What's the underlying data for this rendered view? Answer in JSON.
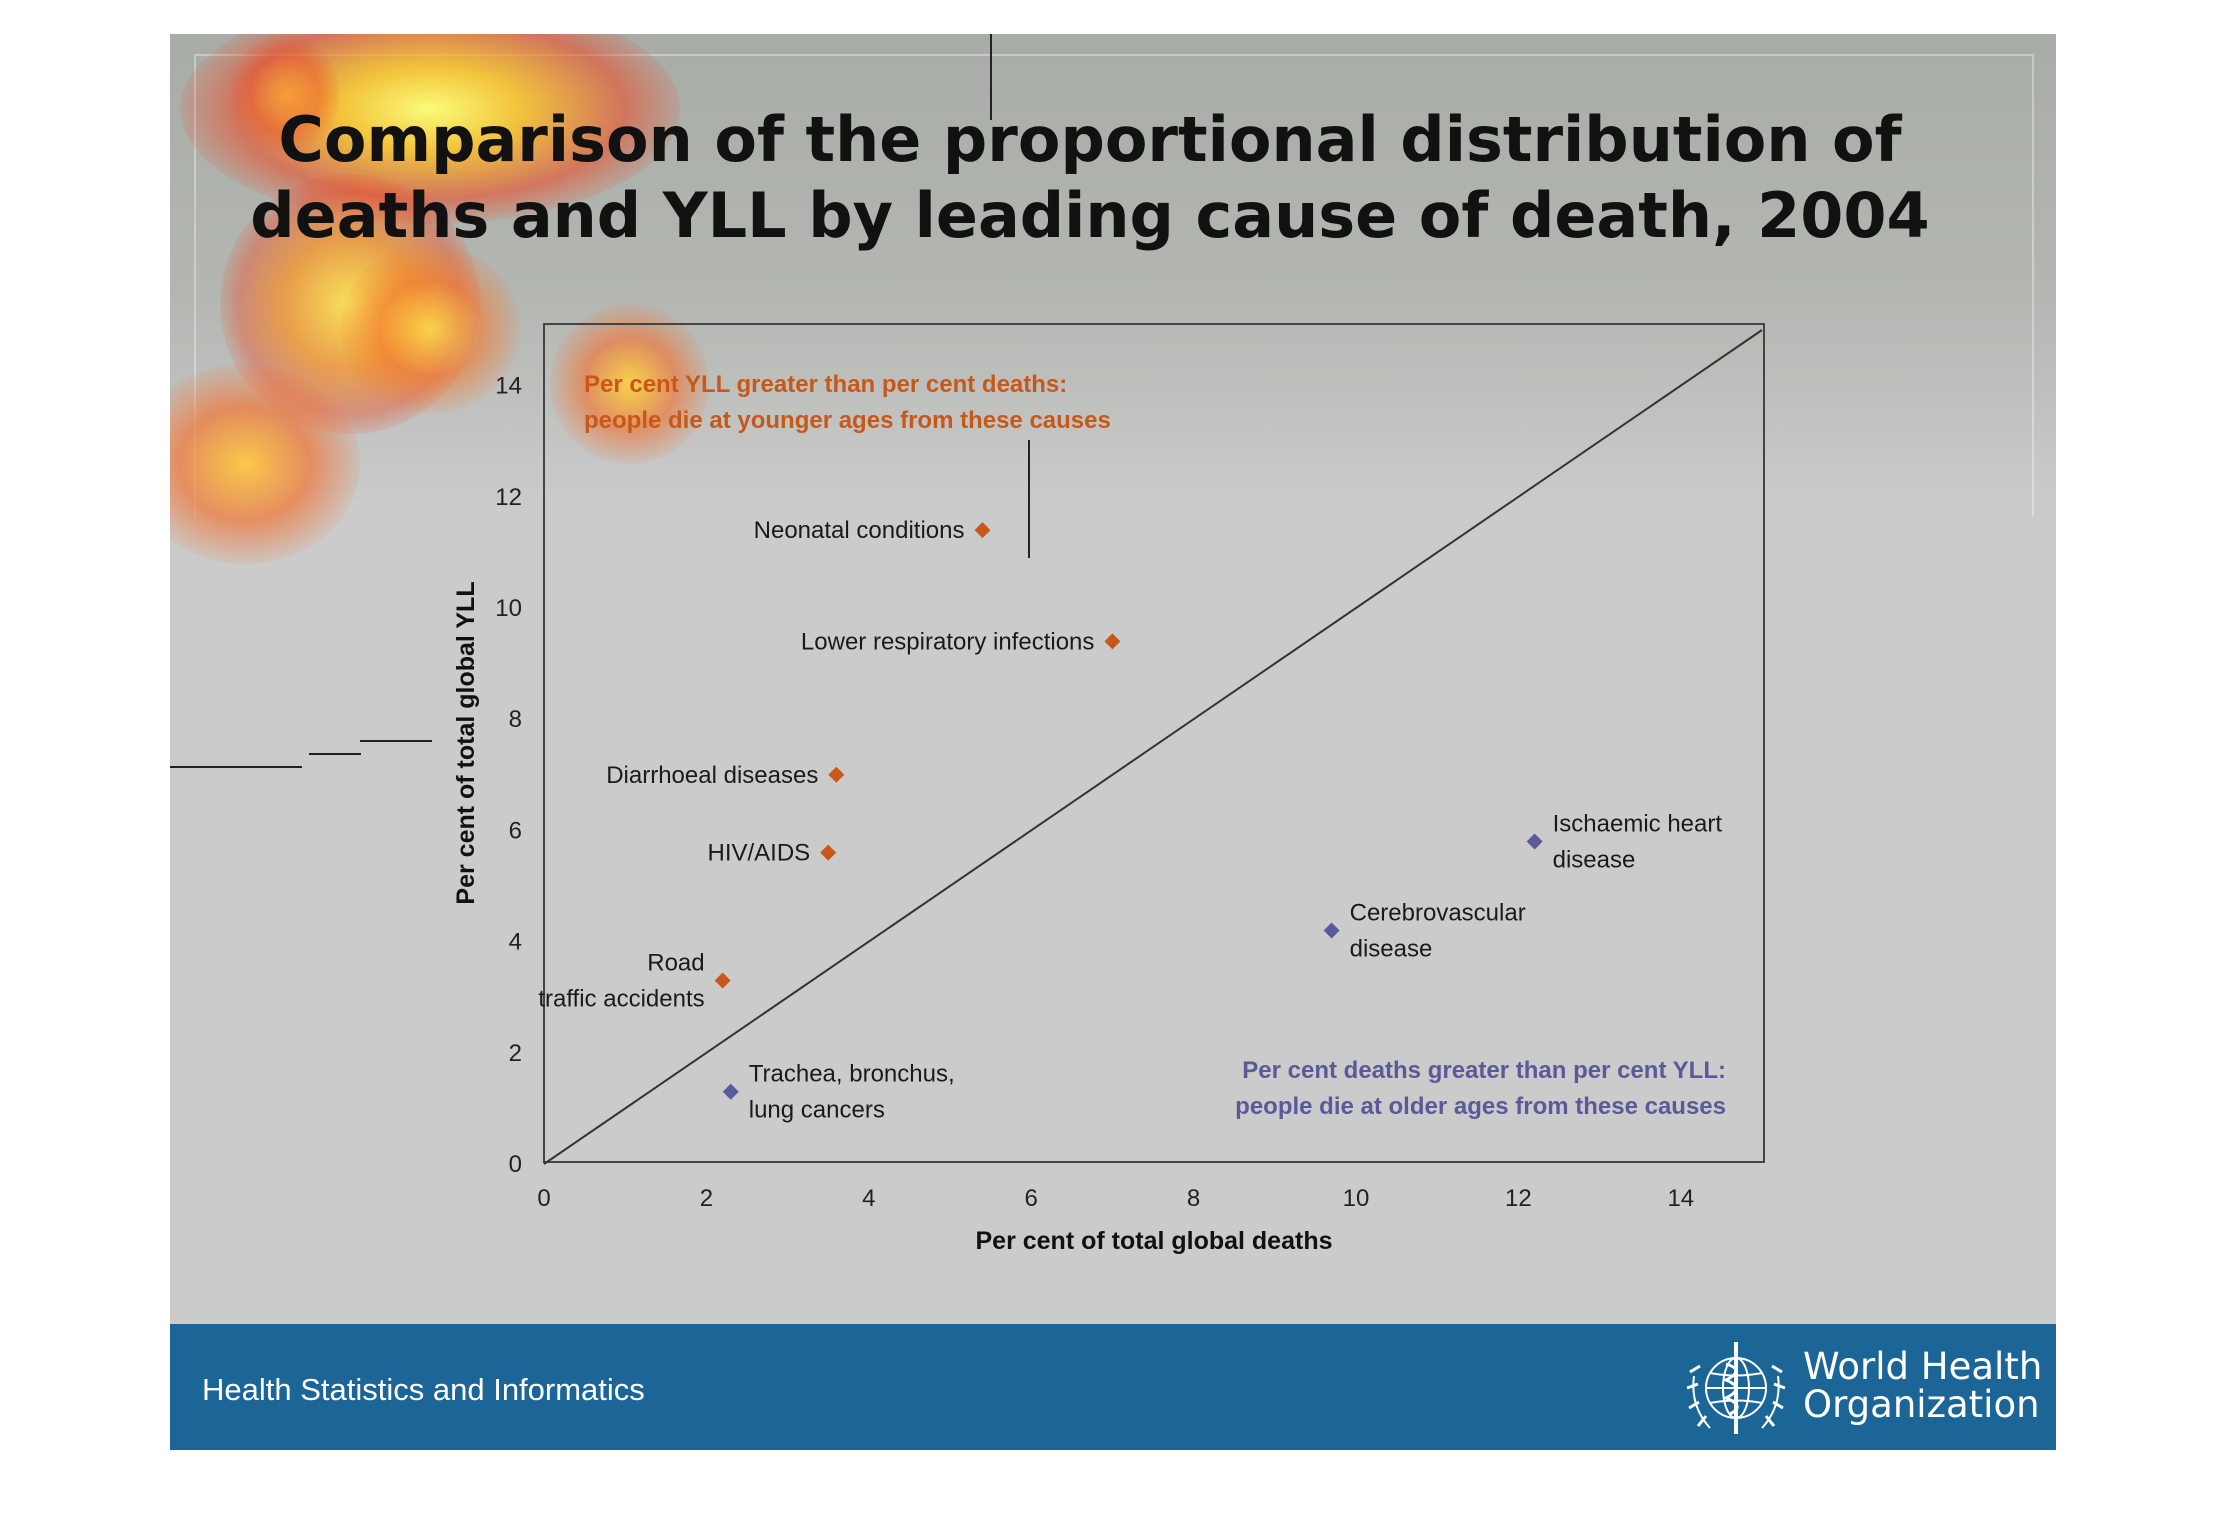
{
  "slide": {
    "title_line1": "Comparison of the proportional distribution of",
    "title_line2": "deaths and YLL by leading cause of death, 2004",
    "footer_text": "Health Statistics and Informatics",
    "org_name_line1": "World Health",
    "org_name_line2": "Organization",
    "footer_color": "#1b6597"
  },
  "chart_data": {
    "type": "scatter",
    "xlabel": "Per cent of total global deaths",
    "ylabel": "Per cent of total global YLL",
    "xlim": [
      0,
      15
    ],
    "ylim": [
      0,
      15
    ],
    "x_ticks": [
      0,
      2,
      4,
      6,
      8,
      10,
      12,
      14
    ],
    "y_ticks": [
      0,
      2,
      4,
      6,
      8,
      10,
      12,
      14
    ],
    "reference_line": "y = x",
    "annotations": [
      {
        "lines": [
          "Per cent YLL greater than per cent deaths:",
          "people die at younger ages from these causes"
        ],
        "color": "#c8581a",
        "position": "top-left"
      },
      {
        "lines": [
          "Per cent deaths greater than per cent YLL:",
          "people die at older ages from these causes"
        ],
        "color": "#5a5a9a",
        "position": "bottom-right"
      }
    ],
    "points": [
      {
        "lines": [
          "Neonatal conditions"
        ],
        "x": 5.4,
        "y": 11.4,
        "color": "#c8581a",
        "label_side": "left"
      },
      {
        "lines": [
          "Lower respiratory infections"
        ],
        "x": 7.0,
        "y": 9.4,
        "color": "#c8581a",
        "label_side": "left"
      },
      {
        "lines": [
          "Diarrhoeal diseases"
        ],
        "x": 3.6,
        "y": 7.0,
        "color": "#c8581a",
        "label_side": "left"
      },
      {
        "lines": [
          "HIV/AIDS"
        ],
        "x": 3.5,
        "y": 5.6,
        "color": "#c8581a",
        "label_side": "left"
      },
      {
        "lines": [
          "Road",
          "traffic accidents"
        ],
        "x": 2.2,
        "y": 3.3,
        "color": "#c8581a",
        "label_side": "left"
      },
      {
        "lines": [
          "Trachea, bronchus,",
          "lung cancers"
        ],
        "x": 2.3,
        "y": 1.3,
        "color": "#5a5a9a",
        "label_side": "right"
      },
      {
        "lines": [
          "Cerebrovascular",
          "disease"
        ],
        "x": 9.7,
        "y": 4.2,
        "color": "#5a5a9a",
        "label_side": "right"
      },
      {
        "lines": [
          "Ischaemic heart",
          "disease"
        ],
        "x": 12.2,
        "y": 5.8,
        "color": "#5a5a9a",
        "label_side": "right"
      }
    ]
  }
}
